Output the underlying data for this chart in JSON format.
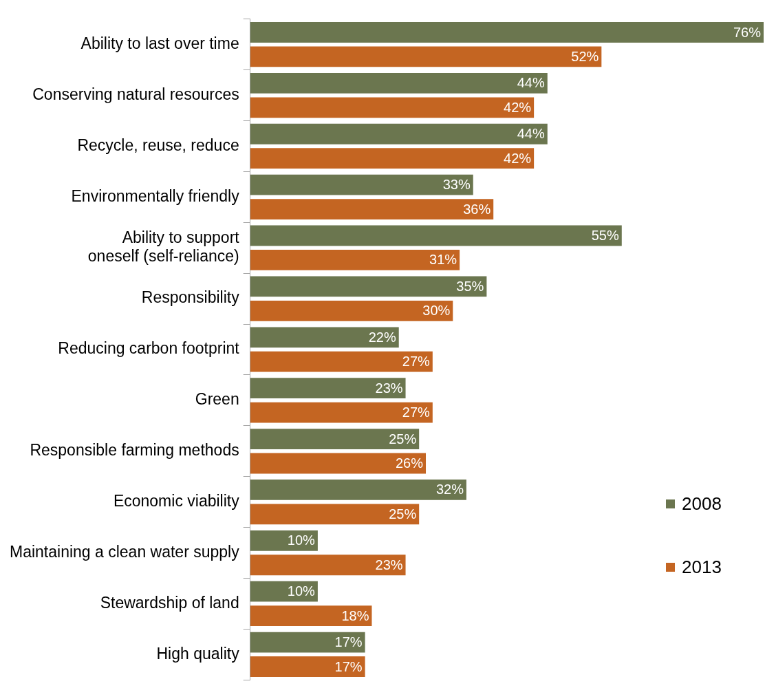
{
  "chart_data": {
    "type": "bar",
    "orientation": "horizontal",
    "categories": [
      "Ability to last over time",
      "Conserving natural resources",
      "Recycle, reuse, reduce",
      "Environmentally friendly",
      "Ability to support oneself (self-reliance)",
      "Responsibility",
      "Reducing carbon footprint",
      "Green",
      "Responsible farming methods",
      "Economic viability",
      "Maintaining a clean water supply",
      "Stewardship of land",
      "High quality"
    ],
    "series": [
      {
        "name": "2008",
        "color": "#6b764f",
        "values": [
          76,
          44,
          44,
          33,
          55,
          35,
          22,
          23,
          25,
          32,
          10,
          10,
          17
        ],
        "value_labels": [
          "76%",
          "44%",
          "44%",
          "33%",
          "55%",
          "35%",
          "22%",
          "23%",
          "25%",
          "32%",
          "10%",
          "10%",
          "17%"
        ]
      },
      {
        "name": "2013",
        "color": "#c46522",
        "values": [
          52,
          42,
          42,
          36,
          31,
          30,
          27,
          27,
          26,
          25,
          23,
          18,
          17
        ],
        "value_labels": [
          "52%",
          "42%",
          "42%",
          "36%",
          "31%",
          "30%",
          "27%",
          "27%",
          "26%",
          "25%",
          "23%",
          "18%",
          "17%"
        ]
      }
    ],
    "legend": "right",
    "grid": false
  }
}
